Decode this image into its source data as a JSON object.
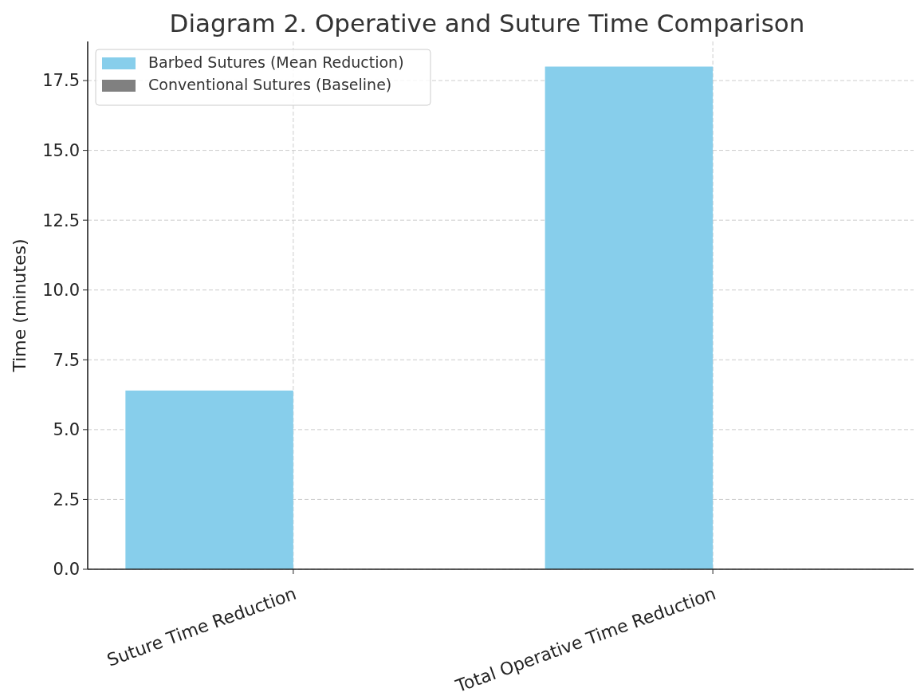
{
  "chart_data": {
    "type": "bar",
    "title": "Diagram 2. Operative and Suture Time Comparison",
    "ylabel": "Time (minutes)",
    "categories": [
      "Suture Time Reduction",
      "Total Operative Time Reduction"
    ],
    "series": [
      {
        "name": "Barbed Sutures (Mean Reduction)",
        "color": "#87ceeb",
        "values": [
          6.4,
          18.0
        ]
      },
      {
        "name": "Conventional Sutures (Baseline)",
        "color": "#808080",
        "values": [
          0,
          0
        ]
      }
    ],
    "ylim": [
      0,
      18.9
    ],
    "yticks": [
      {
        "value": 0,
        "label": "0.0"
      },
      {
        "value": 2.5,
        "label": "2.5"
      },
      {
        "value": 5,
        "label": "5.0"
      },
      {
        "value": 7.5,
        "label": "7.5"
      },
      {
        "value": 10,
        "label": "10.0"
      },
      {
        "value": 12.5,
        "label": "12.5"
      },
      {
        "value": 15,
        "label": "15.0"
      },
      {
        "value": 17.5,
        "label": "17.5"
      }
    ],
    "grid": true,
    "legend": "top left"
  }
}
